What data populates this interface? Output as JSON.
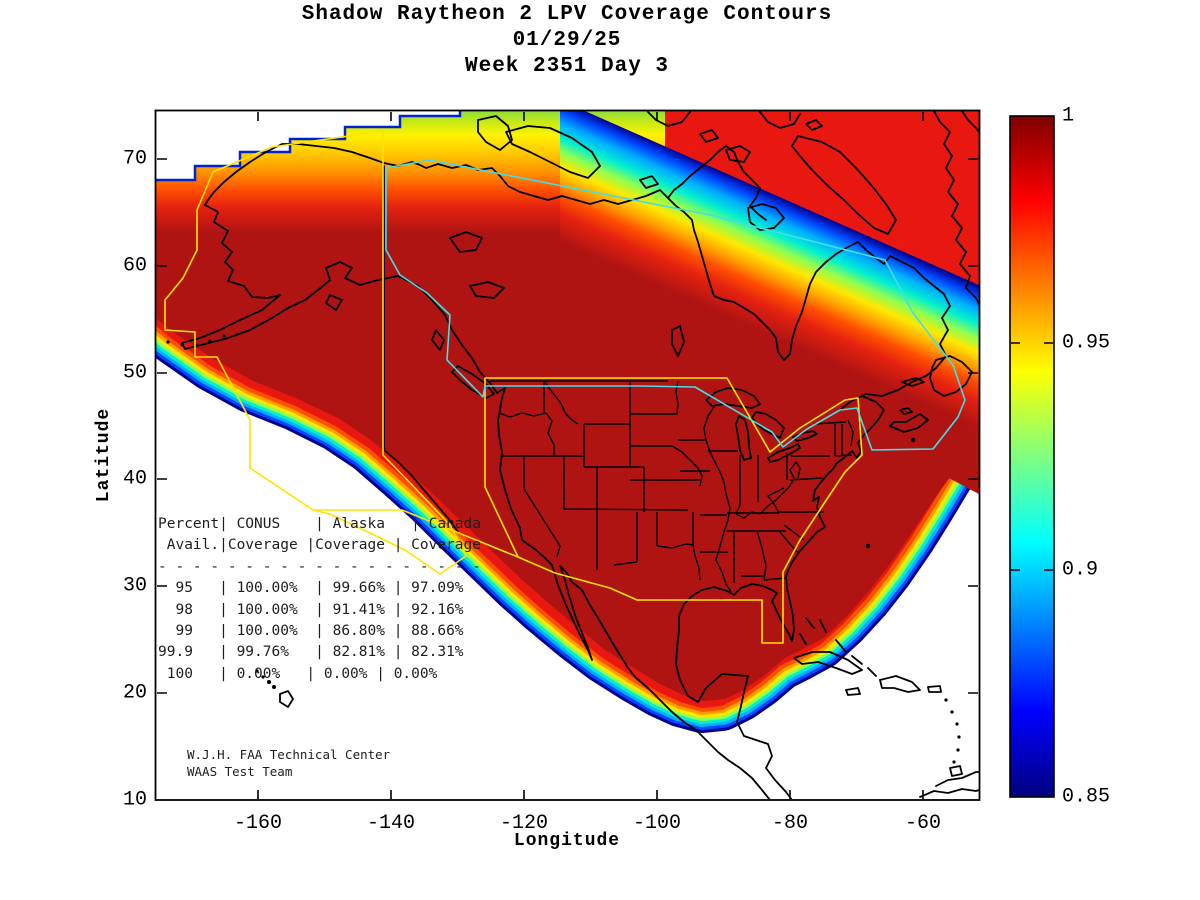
{
  "figure": {
    "title_line1": "Shadow Raytheon 2 LPV Coverage Contours",
    "title_line2": "01/29/25",
    "title_line3": "Week 2351 Day 3"
  },
  "axes": {
    "xlabel": "Longitude",
    "ylabel": "Latitude",
    "xtick_labels": [
      "-160",
      "-140",
      "-120",
      "-100",
      "-80",
      "-60"
    ],
    "ytick_labels": [
      "70",
      "60",
      "50",
      "40",
      "30",
      "20",
      "10"
    ]
  },
  "colorbar": {
    "tick_labels": [
      "1",
      "0.95",
      "0.9",
      "0.85"
    ]
  },
  "table": {
    "lines": [
      "Percent| CONUS    | Alaska   | Canada",
      " Avail.|Coverage |Coverage | Coverage",
      "- - - - - - - - - - - - - - - - - - -",
      "  95   | 100.00%  | 99.66% | 97.09%",
      "  98   | 100.00%  | 91.41% | 92.16%",
      "  99   | 100.00%  | 86.80% | 88.66%",
      "99.9   | 99.76%   | 82.81% | 82.31%",
      " 100   | 0.00%   | 0.00% | 0.00%"
    ]
  },
  "annotation": {
    "line1": "W.J.H. FAA Technical Center",
    "line2": "WAAS Test Team"
  },
  "chart_data": {
    "type": "contour",
    "title": "Shadow Raytheon 2 LPV Coverage Contours",
    "date": "01/29/25",
    "gps_week": 2351,
    "gps_day": 3,
    "xlabel": "Longitude",
    "ylabel": "Latitude",
    "xlim": [
      -175,
      -51
    ],
    "ylim": [
      10,
      74.5
    ],
    "xticks": [
      -160,
      -140,
      -120,
      -100,
      -80,
      -60
    ],
    "yticks": [
      10,
      20,
      30,
      40,
      50,
      60,
      70
    ],
    "grid": false,
    "description": "Filled contour map of WAAS LPV availability over North America; dark red region (availability ~1.0) covers CONUS, most of Canada and Alaska, with jet-colormap fringe bands (red-orange-yellow-green-cyan-blue) decreasing to 0.85 at the coverage edge; white outside coverage.",
    "colorbar": {
      "min": 0.85,
      "max": 1.0,
      "tick_values": [
        1,
        0.95,
        0.9,
        0.85
      ],
      "colormap": "jet",
      "orientation": "vertical",
      "position": "right"
    },
    "availability_table": {
      "columns": [
        "Percent Avail.",
        "CONUS Coverage",
        "Alaska Coverage",
        "Canada Coverage"
      ],
      "rows": [
        [
          "95",
          "100.00%",
          "99.66%",
          "97.09%"
        ],
        [
          "98",
          "100.00%",
          "91.41%",
          "92.16%"
        ],
        [
          "99",
          "100.00%",
          "86.80%",
          "88.66%"
        ],
        [
          "99.9",
          "99.76%",
          "82.81%",
          "82.31%"
        ],
        [
          "100",
          "0.00%",
          "0.00%",
          "0.00%"
        ]
      ]
    },
    "overlays": {
      "coastline_color": "#000000",
      "conus_alaska_boundary_color": "#ffe400",
      "canada_boundary_color": "#44dde8",
      "interior_color": "#b01412"
    },
    "credit": [
      "W.J.H. FAA Technical Center",
      "WAAS Test Team"
    ]
  }
}
